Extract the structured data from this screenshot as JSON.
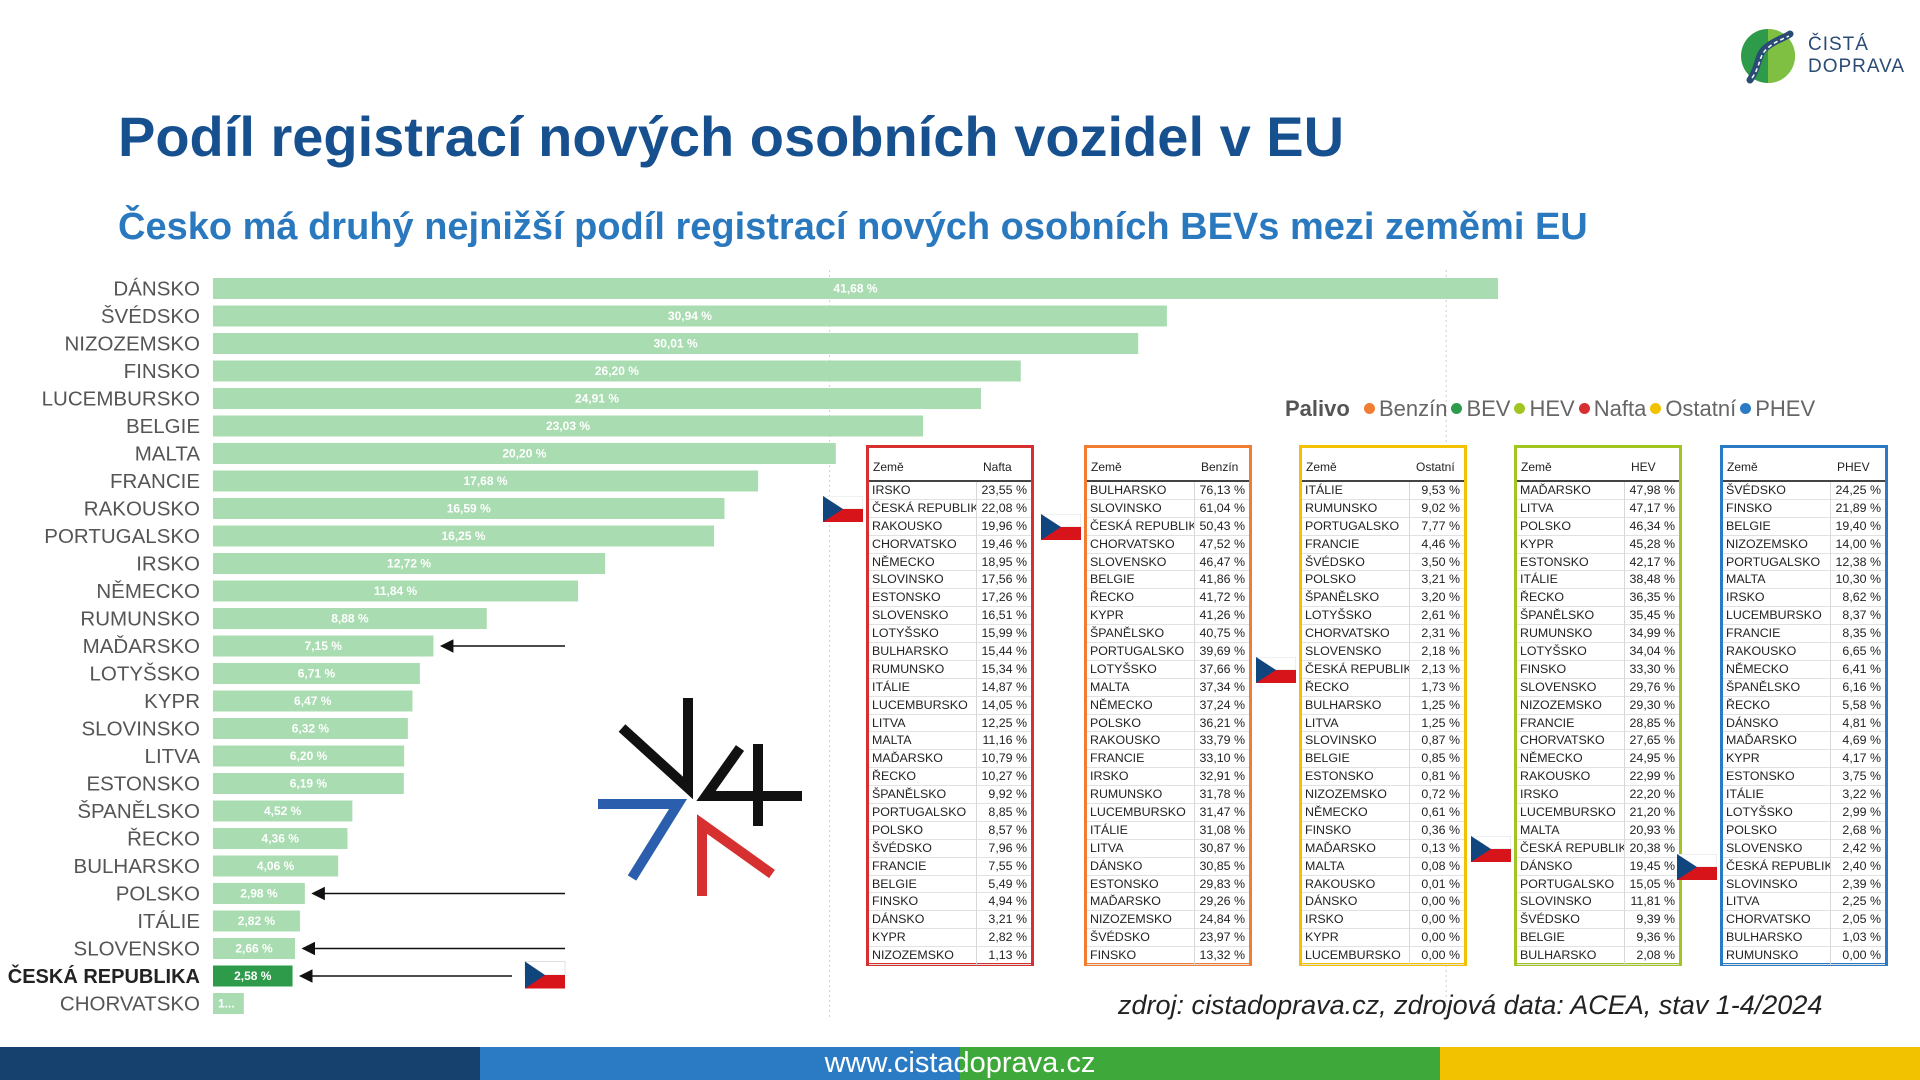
{
  "title": "Podíl registrací nových osobních vozidel v EU",
  "subtitle": "Česko má druhý nejnižší podíl registrací nových osobních BEVs mezi zeměmi EU",
  "logo": {
    "line1": "ČISTÁ",
    "line2": "DOPRAVA",
    "colors": [
      "#2e9b4a",
      "#8dc63f",
      "#2a4c74"
    ]
  },
  "legend": {
    "title": "Palivo",
    "items": [
      {
        "name": "Benzín",
        "color": "#f07d32"
      },
      {
        "name": "BEV",
        "color": "#2e9b4a"
      },
      {
        "name": "HEV",
        "color": "#a3c522"
      },
      {
        "name": "Nafta",
        "color": "#d63031"
      },
      {
        "name": "Ostatní",
        "color": "#f2c200"
      },
      {
        "name": "PHEV",
        "color": "#2b7bc4"
      }
    ]
  },
  "chart_data": [
    {
      "type": "bar",
      "orientation": "horizontal",
      "title": "",
      "categories": [
        "DÁNSKO",
        "ŠVÉDSKO",
        "NIZOZEMSKO",
        "FINSKO",
        "LUCEMBURSKO",
        "BELGIE",
        "MALTA",
        "FRANCIE",
        "RAKOUSKO",
        "PORTUGALSKO",
        "IRSKO",
        "NĚMECKO",
        "RUMUNSKO",
        "MAĎARSKO",
        "LOTYŠSKO",
        "KYPR",
        "SLOVINSKO",
        "LITVA",
        "ESTONSKO",
        "ŠPANĚLSKO",
        "ŘECKO",
        "BULHARSKO",
        "POLSKO",
        "ITÁLIE",
        "SLOVENSKO",
        "ČESKÁ REPUBLIKA",
        "CHORVATSKO"
      ],
      "values": [
        41.68,
        30.94,
        30.01,
        26.2,
        24.91,
        23.03,
        20.2,
        17.68,
        16.59,
        16.25,
        12.72,
        11.84,
        8.88,
        7.15,
        6.71,
        6.47,
        6.32,
        6.2,
        6.19,
        4.52,
        4.36,
        4.06,
        2.98,
        2.82,
        2.66,
        2.58,
        1.0
      ],
      "labels": [
        "41,68 %",
        "30,94 %",
        "30,01 %",
        "26,20 %",
        "24,91 %",
        "23,03 %",
        "20,20 %",
        "17,68 %",
        "16,59 %",
        "16,25 %",
        "12,72 %",
        "11,84 %",
        "8,88 %",
        "7,15 %",
        "6,71 %",
        "6,47 %",
        "6,32 %",
        "6,20 %",
        "6,19 %",
        "4,52 %",
        "4,36 %",
        "4,06 %",
        "2,98 %",
        "2,82 %",
        "2,66 %",
        "2,58 %",
        "1..."
      ],
      "highlight": "ČESKÁ REPUBLIKA",
      "annotated": [
        "MAĎARSKO",
        "POLSKO",
        "SLOVENSKO",
        "ČESKÁ REPUBLIKA"
      ],
      "colors": {
        "bar": "#a9dcb1",
        "highlight": "#2e9b4a"
      },
      "xlim": [
        0,
        42
      ],
      "grid": true
    },
    {
      "type": "table",
      "header": [
        "Země",
        "Nafta"
      ],
      "color": "#d63031",
      "highlight": "ČESKÁ REPUBLIKA",
      "rows": [
        [
          "IRSKO",
          "23,55 %"
        ],
        [
          "ČESKÁ REPUBLIKA",
          "22,08 %"
        ],
        [
          "RAKOUSKO",
          "19,96 %"
        ],
        [
          "CHORVATSKO",
          "19,46 %"
        ],
        [
          "NĚMECKO",
          "18,95 %"
        ],
        [
          "SLOVINSKO",
          "17,56 %"
        ],
        [
          "ESTONSKO",
          "17,26 %"
        ],
        [
          "SLOVENSKO",
          "16,51 %"
        ],
        [
          "LOTYŠSKO",
          "15,99 %"
        ],
        [
          "BULHARSKO",
          "15,44 %"
        ],
        [
          "RUMUNSKO",
          "15,34 %"
        ],
        [
          "ITÁLIE",
          "14,87 %"
        ],
        [
          "LUCEMBURSKO",
          "14,05 %"
        ],
        [
          "LITVA",
          "12,25 %"
        ],
        [
          "MALTA",
          "11,16 %"
        ],
        [
          "MAĎARSKO",
          "10,79 %"
        ],
        [
          "ŘECKO",
          "10,27 %"
        ],
        [
          "ŠPANĚLSKO",
          "9,92 %"
        ],
        [
          "PORTUGALSKO",
          "8,85 %"
        ],
        [
          "POLSKO",
          "8,57 %"
        ],
        [
          "ŠVÉDSKO",
          "7,96 %"
        ],
        [
          "FRANCIE",
          "7,55 %"
        ],
        [
          "BELGIE",
          "5,49 %"
        ],
        [
          "FINSKO",
          "4,94 %"
        ],
        [
          "DÁNSKO",
          "3,21 %"
        ],
        [
          "KYPR",
          "2,82 %"
        ],
        [
          "NIZOZEMSKO",
          "1,13 %"
        ]
      ]
    },
    {
      "type": "table",
      "header": [
        "Země",
        "Benzín"
      ],
      "color": "#f07d32",
      "highlight": "ČESKÁ REPUBLIKA",
      "rows": [
        [
          "BULHARSKO",
          "76,13 %"
        ],
        [
          "SLOVINSKO",
          "61,04 %"
        ],
        [
          "ČESKÁ REPUBLIKA",
          "50,43 %"
        ],
        [
          "CHORVATSKO",
          "47,52 %"
        ],
        [
          "SLOVENSKO",
          "46,47 %"
        ],
        [
          "BELGIE",
          "41,86 %"
        ],
        [
          "ŘECKO",
          "41,72 %"
        ],
        [
          "KYPR",
          "41,26 %"
        ],
        [
          "ŠPANĚLSKO",
          "40,75 %"
        ],
        [
          "PORTUGALSKO",
          "39,69 %"
        ],
        [
          "LOTYŠSKO",
          "37,66 %"
        ],
        [
          "MALTA",
          "37,34 %"
        ],
        [
          "NĚMECKO",
          "37,24 %"
        ],
        [
          "POLSKO",
          "36,21 %"
        ],
        [
          "RAKOUSKO",
          "33,79 %"
        ],
        [
          "FRANCIE",
          "33,10 %"
        ],
        [
          "IRSKO",
          "32,91 %"
        ],
        [
          "RUMUNSKO",
          "31,78 %"
        ],
        [
          "LUCEMBURSKO",
          "31,47 %"
        ],
        [
          "ITÁLIE",
          "31,08 %"
        ],
        [
          "LITVA",
          "30,87 %"
        ],
        [
          "DÁNSKO",
          "30,85 %"
        ],
        [
          "ESTONSKO",
          "29,83 %"
        ],
        [
          "MAĎARSKO",
          "29,26 %"
        ],
        [
          "NIZOZEMSKO",
          "24,84 %"
        ],
        [
          "ŠVÉDSKO",
          "23,97 %"
        ],
        [
          "FINSKO",
          "13,32 %"
        ]
      ]
    },
    {
      "type": "table",
      "header": [
        "Země",
        "Ostatní"
      ],
      "color": "#f2c200",
      "highlight": "ČESKÁ REPUBLIKA",
      "rows": [
        [
          "ITÁLIE",
          "9,53 %"
        ],
        [
          "RUMUNSKO",
          "9,02 %"
        ],
        [
          "PORTUGALSKO",
          "7,77 %"
        ],
        [
          "FRANCIE",
          "4,46 %"
        ],
        [
          "ŠVÉDSKO",
          "3,50 %"
        ],
        [
          "POLSKO",
          "3,21 %"
        ],
        [
          "ŠPANĚLSKO",
          "3,20 %"
        ],
        [
          "LOTYŠSKO",
          "2,61 %"
        ],
        [
          "CHORVATSKO",
          "2,31 %"
        ],
        [
          "SLOVENSKO",
          "2,18 %"
        ],
        [
          "ČESKÁ REPUBLIKA",
          "2,13 %"
        ],
        [
          "ŘECKO",
          "1,73 %"
        ],
        [
          "BULHARSKO",
          "1,25 %"
        ],
        [
          "LITVA",
          "1,25 %"
        ],
        [
          "SLOVINSKO",
          "0,87 %"
        ],
        [
          "BELGIE",
          "0,85 %"
        ],
        [
          "ESTONSKO",
          "0,81 %"
        ],
        [
          "NIZOZEMSKO",
          "0,72 %"
        ],
        [
          "NĚMECKO",
          "0,61 %"
        ],
        [
          "FINSKO",
          "0,36 %"
        ],
        [
          "MAĎARSKO",
          "0,13 %"
        ],
        [
          "MALTA",
          "0,08 %"
        ],
        [
          "RAKOUSKO",
          "0,01 %"
        ],
        [
          "DÁNSKO",
          "0,00 %"
        ],
        [
          "IRSKO",
          "0,00 %"
        ],
        [
          "KYPR",
          "0,00 %"
        ],
        [
          "LUCEMBURSKO",
          "0,00 %"
        ]
      ]
    },
    {
      "type": "table",
      "header": [
        "Země",
        "HEV"
      ],
      "color": "#a3c522",
      "highlight": "ČESKÁ REPUBLIKA",
      "rows": [
        [
          "MAĎARSKO",
          "47,98 %"
        ],
        [
          "LITVA",
          "47,17 %"
        ],
        [
          "POLSKO",
          "46,34 %"
        ],
        [
          "KYPR",
          "45,28 %"
        ],
        [
          "ESTONSKO",
          "42,17 %"
        ],
        [
          "ITÁLIE",
          "38,48 %"
        ],
        [
          "ŘECKO",
          "36,35 %"
        ],
        [
          "ŠPANĚLSKO",
          "35,45 %"
        ],
        [
          "RUMUNSKO",
          "34,99 %"
        ],
        [
          "LOTYŠSKO",
          "34,04 %"
        ],
        [
          "FINSKO",
          "33,30 %"
        ],
        [
          "SLOVENSKO",
          "29,76 %"
        ],
        [
          "NIZOZEMSKO",
          "29,30 %"
        ],
        [
          "FRANCIE",
          "28,85 %"
        ],
        [
          "CHORVATSKO",
          "27,65 %"
        ],
        [
          "NĚMECKO",
          "24,95 %"
        ],
        [
          "RAKOUSKO",
          "22,99 %"
        ],
        [
          "IRSKO",
          "22,20 %"
        ],
        [
          "LUCEMBURSKO",
          "21,20 %"
        ],
        [
          "MALTA",
          "20,93 %"
        ],
        [
          "ČESKÁ REPUBLIKA",
          "20,38 %"
        ],
        [
          "DÁNSKO",
          "19,45 %"
        ],
        [
          "PORTUGALSKO",
          "15,05 %"
        ],
        [
          "SLOVINSKO",
          "11,81 %"
        ],
        [
          "ŠVÉDSKO",
          "9,39 %"
        ],
        [
          "BELGIE",
          "9,36 %"
        ],
        [
          "BULHARSKO",
          "2,08 %"
        ]
      ]
    },
    {
      "type": "table",
      "header": [
        "Země",
        "PHEV"
      ],
      "color": "#2b7bc4",
      "highlight": "ČESKÁ REPUBLIKA",
      "rows": [
        [
          "ŠVÉDSKO",
          "24,25 %"
        ],
        [
          "FINSKO",
          "21,89 %"
        ],
        [
          "BELGIE",
          "19,40 %"
        ],
        [
          "NIZOZEMSKO",
          "14,00 %"
        ],
        [
          "PORTUGALSKO",
          "12,38 %"
        ],
        [
          "MALTA",
          "10,30 %"
        ],
        [
          "IRSKO",
          "8,62 %"
        ],
        [
          "LUCEMBURSKO",
          "8,37 %"
        ],
        [
          "FRANCIE",
          "8,35 %"
        ],
        [
          "RAKOUSKO",
          "6,65 %"
        ],
        [
          "NĚMECKO",
          "6,41 %"
        ],
        [
          "ŠPANĚLSKO",
          "6,16 %"
        ],
        [
          "ŘECKO",
          "5,58 %"
        ],
        [
          "DÁNSKO",
          "4,81 %"
        ],
        [
          "MAĎARSKO",
          "4,69 %"
        ],
        [
          "KYPR",
          "4,17 %"
        ],
        [
          "ESTONSKO",
          "3,75 %"
        ],
        [
          "ITÁLIE",
          "3,22 %"
        ],
        [
          "LOTYŠSKO",
          "2,99 %"
        ],
        [
          "POLSKO",
          "2,68 %"
        ],
        [
          "SLOVENSKO",
          "2,42 %"
        ],
        [
          "ČESKÁ REPUBLIKA",
          "2,40 %"
        ],
        [
          "SLOVINSKO",
          "2,39 %"
        ],
        [
          "LITVA",
          "2,25 %"
        ],
        [
          "CHORVATSKO",
          "2,05 %"
        ],
        [
          "BULHARSKO",
          "1,03 %"
        ],
        [
          "RUMUNSKO",
          "0,00 %"
        ]
      ]
    }
  ],
  "v4_logo": {
    "colors": [
      "#111111",
      "#2b5fad",
      "#d63031"
    ]
  },
  "flag": {
    "colors": [
      "#ffffff",
      "#d7141a",
      "#11457e"
    ]
  },
  "source": "zdroj: cistadoprava.cz, zdrojová data: ACEA, stav 1-4/2024",
  "footer": {
    "url_parts": [
      "www.cista",
      "doprava",
      ".cz"
    ],
    "colors": [
      "#16406e",
      "#2b7bc4",
      "#3fa83a",
      "#f2c200"
    ]
  }
}
